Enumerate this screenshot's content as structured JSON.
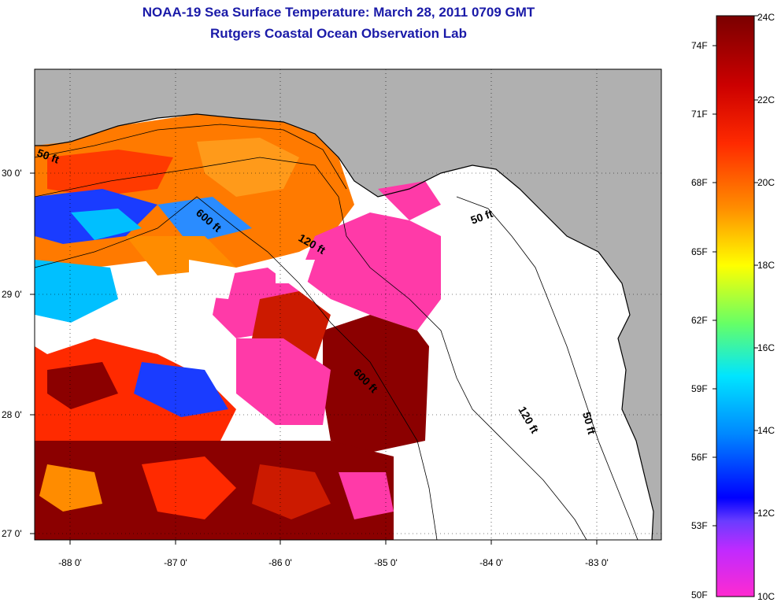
{
  "header": {
    "title": "NOAA-19 Sea Surface Temperature:  March 28, 2011 0709 GMT",
    "subtitle": "Rutgers Coastal Ocean Observation Lab"
  },
  "map": {
    "longitude_ticks": [
      "-88 0'",
      "-87 0'",
      "-86 0'",
      "-85 0'",
      "-84 0'",
      "-83 0'"
    ],
    "latitude_ticks": [
      "30 0'",
      "29 0'",
      "28 0'",
      "27 0'"
    ],
    "contour_labels": [
      "50 ft",
      "600 ft",
      "120 ft",
      "50 ft",
      "600 ft",
      "120 ft",
      "50 ft"
    ],
    "colors": {
      "land": "#b0b0b0",
      "cloud": "#ffffff",
      "warm": "#8b0000",
      "hot": "#ff2000",
      "mid": "#ff8c00",
      "cool": "#00bfff",
      "cold": "#1a3cff",
      "masked": "#ff3aa8"
    }
  },
  "colorbar": {
    "fahrenheit_labels": [
      "74F",
      "71F",
      "68F",
      "65F",
      "62F",
      "59F",
      "56F",
      "53F",
      "50F"
    ],
    "celsius_labels": [
      "24C",
      "22C",
      "20C",
      "18C",
      "16C",
      "14C",
      "12C",
      "10C"
    ]
  }
}
